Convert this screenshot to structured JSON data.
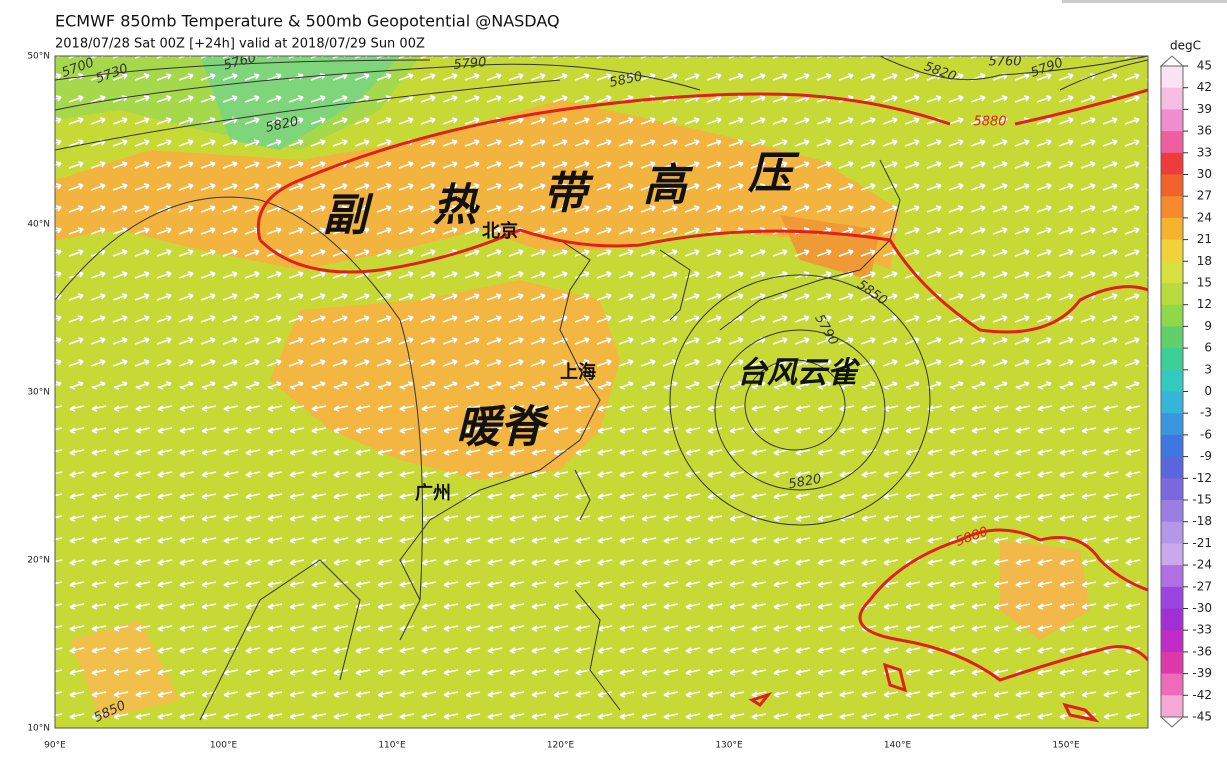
{
  "header": {
    "title": "ECMWF 850mb Temperature & 500mb Geopotential @NASDAQ",
    "subtitle": "2018/07/28 Sat 00Z [+24h] valid at 2018/07/29 Sun 00Z"
  },
  "map": {
    "lat_labels": [
      "50°N",
      "40°N",
      "30°N",
      "20°N",
      "10°N"
    ],
    "lon_labels": [
      "90°E",
      "100°E",
      "110°E",
      "120°E",
      "130°E",
      "140°E",
      "150°E"
    ],
    "contour_labels": [
      "5700",
      "5730",
      "5760",
      "5790",
      "5850",
      "5820",
      "5820",
      "5760",
      "5790",
      "5880",
      "5850",
      "5790",
      "5820",
      "5880",
      "5850"
    ],
    "places": [
      "北京",
      "上海",
      "广州"
    ],
    "annotations": {
      "subtropical_high": [
        "副",
        "热",
        "带",
        "高",
        "压"
      ],
      "warm_ridge": "暖脊",
      "typhoon": "台风云雀"
    }
  },
  "colorbar": {
    "unit": "degC",
    "ticks": [
      45,
      42,
      39,
      36,
      33,
      30,
      27,
      24,
      21,
      18,
      15,
      12,
      9,
      6,
      3,
      0,
      -3,
      -6,
      -9,
      -12,
      -15,
      -18,
      -21,
      -24,
      -27,
      -30,
      -33,
      -36,
      -39,
      -42,
      -45
    ]
  }
}
